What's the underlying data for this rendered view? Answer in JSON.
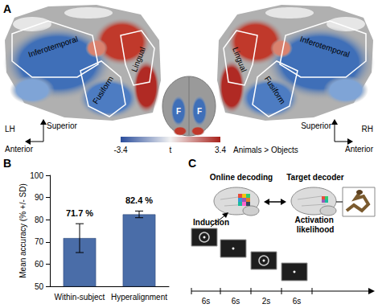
{
  "chart_data": {
    "type": "bar",
    "categories": [
      "Within-subject",
      "Hyperalignment"
    ],
    "values": [
      71.7,
      82.4
    ],
    "value_labels": [
      "71.7 %",
      "82.4 %"
    ],
    "error": [
      6.5,
      1.5
    ],
    "ylabel": "Mean accuracy (% +/- SD)",
    "ylim": [
      50,
      100
    ],
    "yticks": [
      50,
      60,
      70,
      80,
      90,
      100
    ],
    "color": "#4a6da8",
    "grid": false,
    "data_labels": true
  },
  "panel_labels": [
    "A",
    "B",
    "C"
  ],
  "brain_map": {
    "regions_left": [
      "Inferotemporal",
      "Fusiform",
      "Lingual"
    ],
    "regions_right": [
      "Inferotemporal",
      "Fusiform",
      "Lingual"
    ],
    "hemispheres": [
      "LH",
      "RH"
    ],
    "directions": [
      "Superior",
      "Anterior"
    ],
    "inset_labels": [
      "F",
      "F"
    ],
    "colorbar": {
      "range": [
        -3.4,
        3.4
      ],
      "label": "t"
    },
    "contrast": "Animals > Objects"
  },
  "diagram": {
    "nodes": [
      "Online decoding",
      "Target decoder"
    ],
    "induction": "Induction",
    "activation": "Activation likelihood",
    "timeline": [
      "6s",
      "6s",
      "2s",
      "6s"
    ]
  }
}
